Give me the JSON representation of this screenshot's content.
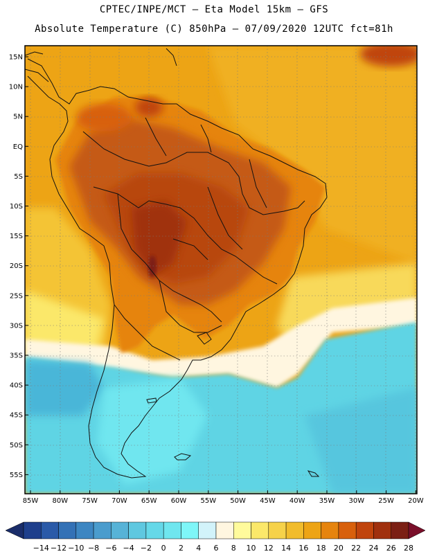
{
  "header": {
    "line1": "CPTEC/INPE/MCT –  Eta Model 15km – GFS",
    "line2": "Absolute Temperature (C) 850hPa – 07/09/2020 12UTC fct=81h"
  },
  "axes": {
    "lat_labels": [
      "15N",
      "10N",
      "5N",
      "EQ",
      "5S",
      "10S",
      "15S",
      "20S",
      "25S",
      "30S",
      "35S",
      "40S",
      "45S",
      "50S",
      "55S"
    ],
    "lon_labels": [
      "85W",
      "80W",
      "75W",
      "70W",
      "65W",
      "60W",
      "55W",
      "50W",
      "45W",
      "40W",
      "35W",
      "30W",
      "25W",
      "20W"
    ]
  },
  "colorbar": {
    "labels": [
      "-14",
      "-12",
      "-10",
      "-8",
      "-6",
      "-4",
      "-2",
      "0",
      "2",
      "4",
      "6",
      "8",
      "10",
      "12",
      "14",
      "16",
      "18",
      "20",
      "22",
      "24",
      "26",
      "28"
    ],
    "colors": [
      "#1e3f8c",
      "#2a5aa8",
      "#3371b6",
      "#3d86c2",
      "#4a9ccd",
      "#57b3d7",
      "#5fc8e0",
      "#65d8e8",
      "#6fe6ef",
      "#7ef6f8",
      "#d2f3fa",
      "#fff6e0",
      "#fffb9c",
      "#fbe86a",
      "#f6d24a",
      "#f1bc2c",
      "#eda415",
      "#e6840e",
      "#d8600c",
      "#c0440d",
      "#a0300e",
      "#7b1f14"
    ],
    "under_color": "#1a2d6a",
    "over_color": "#7a0f2a"
  },
  "colors": {
    "land_hot": "#c55a14",
    "land_core": "#b8470e",
    "ocean_warm": "#eda415",
    "ocean_mid": "#f3c22f",
    "ocean_cold": "#5fd4e4"
  }
}
